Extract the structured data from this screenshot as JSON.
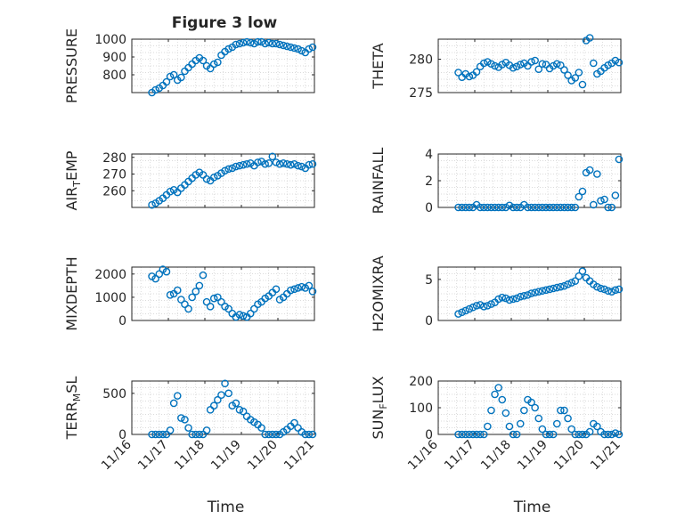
{
  "figure": {
    "title": "Figure 3 low",
    "xlabel": "Time",
    "x_tick_labels": [
      "11/16",
      "11/17",
      "11/18",
      "11/19",
      "11/20",
      "11/21"
    ],
    "marker_color": "#0072BD",
    "axes_color": "#262626",
    "grid_color": "#d0d0d0"
  },
  "chart_data": [
    {
      "type": "scatter",
      "ylabel": "PRESSURE",
      "ylabel_sub": "",
      "ylim": [
        700,
        1000
      ],
      "yticks": [
        800,
        900,
        1000
      ],
      "xlim": [
        0,
        5
      ],
      "x": [
        0.55,
        0.65,
        0.75,
        0.85,
        0.95,
        1.05,
        1.15,
        1.25,
        1.35,
        1.45,
        1.55,
        1.65,
        1.75,
        1.85,
        1.95,
        2.05,
        2.15,
        2.25,
        2.35,
        2.45,
        2.55,
        2.65,
        2.75,
        2.85,
        2.95,
        3.05,
        3.15,
        3.25,
        3.35,
        3.45,
        3.55,
        3.65,
        3.75,
        3.85,
        3.95,
        4.05,
        4.15,
        4.25,
        4.35,
        4.45,
        4.55,
        4.65,
        4.75,
        4.85,
        4.95
      ],
      "y": [
        700,
        715,
        725,
        740,
        760,
        790,
        800,
        770,
        785,
        820,
        840,
        860,
        880,
        895,
        880,
        850,
        835,
        860,
        870,
        910,
        930,
        945,
        955,
        970,
        975,
        980,
        985,
        980,
        975,
        985,
        985,
        975,
        980,
        975,
        975,
        970,
        965,
        960,
        955,
        950,
        945,
        935,
        925,
        945,
        955
      ]
    },
    {
      "type": "scatter",
      "ylabel": "THETA",
      "ylabel_sub": "",
      "ylim": [
        275,
        283
      ],
      "yticks": [
        275,
        280
      ],
      "xlim": [
        0,
        5
      ],
      "x": [
        0.55,
        0.65,
        0.75,
        0.85,
        0.95,
        1.05,
        1.15,
        1.25,
        1.35,
        1.45,
        1.55,
        1.65,
        1.75,
        1.85,
        1.95,
        2.05,
        2.15,
        2.25,
        2.35,
        2.45,
        2.55,
        2.65,
        2.75,
        2.85,
        2.95,
        3.05,
        3.15,
        3.25,
        3.35,
        3.45,
        3.55,
        3.65,
        3.75,
        3.85,
        3.95,
        4.05,
        4.15,
        4.25,
        4.35,
        4.45,
        4.55,
        4.65,
        4.75,
        4.85,
        4.95
      ],
      "y": [
        278.0,
        277.3,
        277.8,
        277.4,
        277.6,
        278.1,
        278.9,
        279.4,
        279.6,
        279.3,
        279.0,
        278.8,
        279.2,
        279.5,
        279.1,
        278.7,
        278.9,
        279.2,
        279.4,
        279.0,
        279.6,
        279.8,
        278.5,
        279.3,
        279.2,
        278.6,
        279.0,
        279.3,
        279.1,
        278.4,
        277.6,
        276.8,
        277.2,
        278.0,
        276.2,
        282.8,
        283.2,
        279.4,
        277.8,
        278.2,
        278.7,
        279.1,
        279.4,
        279.8,
        279.5
      ]
    },
    {
      "type": "scatter",
      "ylabel": "AIR",
      "ylabel_sub": "T",
      "ylabel_suffix": "EMP",
      "ylim": [
        250,
        282
      ],
      "yticks": [
        260,
        270,
        280
      ],
      "xlim": [
        0,
        5
      ],
      "x": [
        0.55,
        0.65,
        0.75,
        0.85,
        0.95,
        1.05,
        1.15,
        1.25,
        1.35,
        1.45,
        1.55,
        1.65,
        1.75,
        1.85,
        1.95,
        2.05,
        2.15,
        2.25,
        2.35,
        2.45,
        2.55,
        2.65,
        2.75,
        2.85,
        2.95,
        3.05,
        3.15,
        3.25,
        3.35,
        3.45,
        3.55,
        3.65,
        3.75,
        3.85,
        3.95,
        4.05,
        4.15,
        4.25,
        4.35,
        4.45,
        4.55,
        4.65,
        4.75,
        4.85,
        4.95
      ],
      "y": [
        251.5,
        252.5,
        254,
        255.5,
        257.5,
        259.5,
        260.5,
        259.0,
        261.5,
        263.5,
        265.5,
        267.5,
        269.5,
        271.0,
        269.5,
        267.0,
        266.0,
        268.0,
        269.0,
        270.5,
        272.0,
        273.0,
        273.5,
        274.5,
        275.0,
        275.5,
        276.0,
        276.5,
        275.0,
        277.0,
        277.5,
        276.0,
        276.5,
        280.5,
        277.0,
        276.0,
        276.5,
        276.0,
        275.5,
        276.0,
        275.0,
        274.5,
        273.5,
        275.5,
        276.0
      ]
    },
    {
      "type": "scatter",
      "ylabel": "RAINFALL",
      "ylabel_sub": "",
      "ylim": [
        0,
        4
      ],
      "yticks": [
        0,
        2,
        4
      ],
      "xlim": [
        0,
        5
      ],
      "x": [
        0.55,
        0.65,
        0.75,
        0.85,
        0.95,
        1.05,
        1.15,
        1.25,
        1.35,
        1.45,
        1.55,
        1.65,
        1.75,
        1.85,
        1.95,
        2.05,
        2.15,
        2.25,
        2.35,
        2.45,
        2.55,
        2.65,
        2.75,
        2.85,
        2.95,
        3.05,
        3.15,
        3.25,
        3.35,
        3.45,
        3.55,
        3.65,
        3.75,
        3.85,
        3.95,
        4.05,
        4.15,
        4.25,
        4.35,
        4.45,
        4.55,
        4.65,
        4.75,
        4.85,
        4.95
      ],
      "y": [
        0,
        0,
        0,
        0,
        0,
        0.2,
        0,
        0,
        0,
        0,
        0,
        0,
        0,
        0,
        0.15,
        0,
        0,
        0,
        0.2,
        0,
        0,
        0,
        0,
        0,
        0,
        0,
        0,
        0,
        0,
        0,
        0,
        0,
        0,
        0.8,
        1.2,
        2.6,
        2.8,
        0.2,
        2.5,
        0.5,
        0.6,
        0,
        0,
        0.9,
        3.6
      ]
    },
    {
      "type": "scatter",
      "ylabel": "MIXDEPTH",
      "ylabel_sub": "",
      "ylim": [
        0,
        2300
      ],
      "yticks": [
        0,
        1000,
        2000
      ],
      "xlim": [
        0,
        5
      ],
      "x": [
        0.55,
        0.65,
        0.75,
        0.85,
        0.95,
        1.05,
        1.15,
        1.25,
        1.35,
        1.45,
        1.55,
        1.65,
        1.75,
        1.85,
        1.95,
        2.05,
        2.15,
        2.25,
        2.35,
        2.45,
        2.55,
        2.65,
        2.75,
        2.85,
        2.95,
        3.05,
        3.15,
        3.25,
        3.35,
        3.45,
        3.55,
        3.65,
        3.75,
        3.85,
        3.95,
        4.05,
        4.15,
        4.25,
        4.35,
        4.45,
        4.55,
        4.65,
        4.75,
        4.85,
        4.95
      ],
      "y": [
        1900,
        1800,
        2000,
        2200,
        2100,
        1100,
        1150,
        1300,
        900,
        700,
        500,
        1000,
        1250,
        1500,
        1950,
        800,
        600,
        950,
        1000,
        800,
        600,
        500,
        300,
        150,
        250,
        200,
        150,
        300,
        500,
        700,
        800,
        950,
        1050,
        1200,
        1350,
        900,
        1000,
        1150,
        1300,
        1350,
        1400,
        1450,
        1400,
        1500,
        1250
      ]
    },
    {
      "type": "scatter",
      "ylabel": "H2OMIXRA",
      "ylabel_sub": "",
      "ylim": [
        0,
        6.5
      ],
      "yticks": [
        0,
        5
      ],
      "xlim": [
        0,
        5
      ],
      "x": [
        0.55,
        0.65,
        0.75,
        0.85,
        0.95,
        1.05,
        1.15,
        1.25,
        1.35,
        1.45,
        1.55,
        1.65,
        1.75,
        1.85,
        1.95,
        2.05,
        2.15,
        2.25,
        2.35,
        2.45,
        2.55,
        2.65,
        2.75,
        2.85,
        2.95,
        3.05,
        3.15,
        3.25,
        3.35,
        3.45,
        3.55,
        3.65,
        3.75,
        3.85,
        3.95,
        4.05,
        4.15,
        4.25,
        4.35,
        4.45,
        4.55,
        4.65,
        4.75,
        4.85,
        4.95
      ],
      "y": [
        0.8,
        1.0,
        1.2,
        1.4,
        1.6,
        1.8,
        1.9,
        1.7,
        1.8,
        2.0,
        2.2,
        2.6,
        2.8,
        2.7,
        2.5,
        2.6,
        2.7,
        2.9,
        3.0,
        3.1,
        3.3,
        3.4,
        3.5,
        3.6,
        3.7,
        3.8,
        3.9,
        4.0,
        4.1,
        4.2,
        4.4,
        4.6,
        4.8,
        5.4,
        6.0,
        5.2,
        4.8,
        4.4,
        4.1,
        3.9,
        3.8,
        3.6,
        3.5,
        3.7,
        3.8
      ]
    },
    {
      "type": "scatter",
      "ylabel": "TERR",
      "ylabel_sub": "M",
      "ylabel_suffix": "SL",
      "ylim": [
        0,
        650
      ],
      "yticks": [
        0,
        500
      ],
      "xlim": [
        0,
        5
      ],
      "x": [
        0.55,
        0.65,
        0.75,
        0.85,
        0.95,
        1.05,
        1.15,
        1.25,
        1.35,
        1.45,
        1.55,
        1.65,
        1.75,
        1.85,
        1.95,
        2.05,
        2.15,
        2.25,
        2.35,
        2.45,
        2.55,
        2.65,
        2.75,
        2.85,
        2.95,
        3.05,
        3.15,
        3.25,
        3.35,
        3.45,
        3.55,
        3.65,
        3.75,
        3.85,
        3.95,
        4.05,
        4.15,
        4.25,
        4.35,
        4.45,
        4.55,
        4.65,
        4.75,
        4.85,
        4.95
      ],
      "y": [
        0,
        0,
        0,
        0,
        0,
        50,
        380,
        470,
        200,
        180,
        80,
        0,
        0,
        0,
        0,
        50,
        300,
        350,
        420,
        480,
        620,
        500,
        350,
        380,
        300,
        280,
        220,
        180,
        150,
        120,
        80,
        0,
        0,
        0,
        0,
        0,
        30,
        60,
        100,
        140,
        80,
        30,
        0,
        0,
        0
      ]
    },
    {
      "type": "scatter",
      "ylabel": "SUN",
      "ylabel_sub": "F",
      "ylabel_suffix": "LUX",
      "ylim": [
        0,
        200
      ],
      "yticks": [
        0,
        100,
        200
      ],
      "xlim": [
        0,
        5
      ],
      "x": [
        0.55,
        0.65,
        0.75,
        0.85,
        0.95,
        1.05,
        1.15,
        1.25,
        1.35,
        1.45,
        1.55,
        1.65,
        1.75,
        1.85,
        1.95,
        2.05,
        2.15,
        2.25,
        2.35,
        2.45,
        2.55,
        2.65,
        2.75,
        2.85,
        2.95,
        3.05,
        3.15,
        3.25,
        3.35,
        3.45,
        3.55,
        3.65,
        3.75,
        3.85,
        3.95,
        4.05,
        4.15,
        4.25,
        4.35,
        4.45,
        4.55,
        4.65,
        4.75,
        4.85,
        4.95
      ],
      "y": [
        0,
        0,
        0,
        0,
        0,
        0,
        0,
        0,
        30,
        90,
        150,
        175,
        130,
        80,
        30,
        0,
        0,
        40,
        90,
        130,
        120,
        100,
        60,
        20,
        0,
        0,
        0,
        40,
        90,
        90,
        60,
        20,
        0,
        0,
        0,
        0,
        10,
        40,
        30,
        10,
        0,
        0,
        0,
        5,
        0
      ]
    }
  ]
}
